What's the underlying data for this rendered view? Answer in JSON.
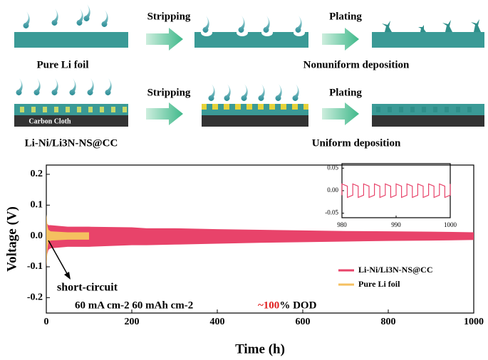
{
  "schematic": {
    "rows": [
      {
        "label": "Pure Li foil",
        "step1": "Stripping",
        "step2": "Plating",
        "result": "Nonuniform deposition"
      },
      {
        "label": "Li-Ni/Li3N-NS@CC",
        "substrate": "Carbon Cloth",
        "step1": "Stripping",
        "step2": "Plating",
        "result": "Uniform deposition"
      }
    ]
  },
  "chart_data": [
    {
      "type": "band",
      "xlabel": "Time (h)",
      "ylabel": "Voltage (V)",
      "xlim": [
        0,
        1000
      ],
      "xticks": [
        0,
        200,
        400,
        600,
        800,
        1000
      ],
      "ylim": [
        -0.25,
        0.23
      ],
      "yticks": [
        {
          "value": -0.2,
          "label": "-0.2"
        },
        {
          "value": -0.1,
          "label": "-0.1"
        },
        {
          "value": 0,
          "label": "0.0"
        },
        {
          "value": 0.1,
          "label": "0.1"
        },
        {
          "value": 0.2,
          "label": "0.2"
        }
      ],
      "legend": "lower right",
      "annotations": [
        "short-circuit",
        "60 mA cm-2 60 mAh cm-2",
        "~100",
        "% DOD"
      ],
      "series": [
        {
          "name": "Li-Ni/Li3N-NS@CC",
          "color": "#e8436a",
          "x": [
            0,
            2,
            5,
            10,
            50,
            100,
            200,
            235,
            300,
            400,
            500,
            600,
            700,
            800,
            900,
            1000
          ],
          "upper": [
            0.03,
            0.04,
            0.035,
            0.035,
            0.03,
            0.03,
            0.028,
            0.025,
            0.025,
            0.022,
            0.02,
            0.018,
            0.016,
            0.015,
            0.014,
            0.012
          ],
          "lower": [
            -0.1,
            -0.06,
            -0.045,
            -0.04,
            -0.035,
            -0.035,
            -0.03,
            -0.03,
            -0.028,
            -0.025,
            -0.022,
            -0.02,
            -0.018,
            -0.016,
            -0.015,
            -0.013
          ]
        },
        {
          "name": "Pure Li foil",
          "color": "#f5c060",
          "x": [
            0,
            1,
            3,
            5,
            10,
            50,
            100
          ],
          "upper": [
            0.07,
            0.06,
            0.03,
            0.02,
            0.015,
            0.012,
            0.012
          ],
          "lower": [
            -0.1,
            -0.08,
            -0.04,
            -0.02,
            -0.015,
            -0.012,
            -0.012
          ]
        }
      ]
    },
    {
      "type": "line",
      "xlim": [
        980,
        1000
      ],
      "xticks": [
        980,
        990,
        1000
      ],
      "ylim": [
        -0.06,
        0.06
      ],
      "yticks": [
        {
          "value": -0.05,
          "label": "-0.05"
        },
        {
          "value": 0,
          "label": "0.00"
        },
        {
          "value": 0.05,
          "label": "0.05"
        }
      ],
      "series": [
        {
          "color": "#e8436a",
          "x": [
            980,
            980,
            981,
            981,
            982,
            982,
            983,
            983,
            984,
            984,
            985,
            985,
            986,
            986,
            987,
            987,
            988,
            988,
            989,
            989,
            990,
            990,
            991,
            991,
            992,
            992,
            993,
            993,
            994,
            994,
            995,
            995,
            996,
            996,
            997,
            997,
            998,
            998,
            999,
            999,
            1000,
            1000
          ],
          "values": [
            -0.01,
            0.015,
            0.01,
            -0.015,
            -0.01,
            0.015,
            0.01,
            -0.015,
            -0.01,
            0.015,
            0.01,
            -0.015,
            -0.01,
            0.015,
            0.01,
            -0.015,
            -0.01,
            0.015,
            0.01,
            -0.015,
            -0.01,
            0.015,
            0.01,
            -0.015,
            -0.01,
            0.015,
            0.01,
            -0.015,
            -0.01,
            0.015,
            0.01,
            -0.015,
            -0.01,
            0.015,
            0.01,
            -0.015,
            -0.01,
            0.015,
            0.01,
            -0.015,
            -0.01,
            0.015
          ]
        }
      ]
    }
  ]
}
